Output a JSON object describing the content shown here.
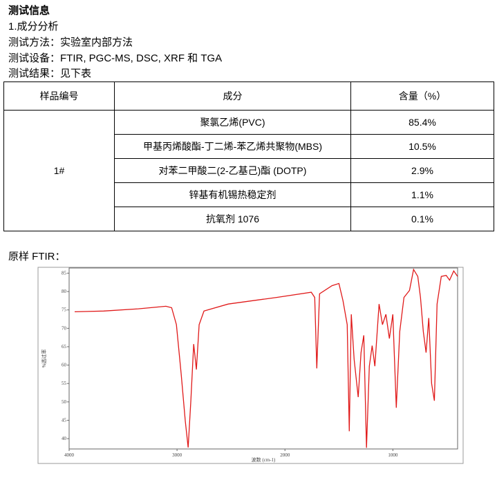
{
  "header": {
    "title": "测试信息",
    "lines": [
      "1.成分分析",
      "测试方法：实验室内部方法",
      "测试设备：FTIR, PGC-MS, DSC, XRF 和 TGA",
      "测试结果：见下表"
    ]
  },
  "table": {
    "headers": [
      "样品编号",
      "成分",
      "含量（%）"
    ],
    "sample": "1#",
    "rows": [
      [
        "聚氯乙烯(PVC)",
        "85.4%"
      ],
      [
        "甲基丙烯酸酯-丁二烯-苯乙烯共聚物(MBS)",
        "10.5%"
      ],
      [
        "对苯二甲酸二(2-乙基己)酯 (DOTP)",
        "2.9%"
      ],
      [
        "锌基有机锡热稳定剂",
        "1.1%"
      ],
      [
        "抗氧剂 1076",
        "0.1%"
      ]
    ]
  },
  "ftir": {
    "title": "原样 FTIR：",
    "chart": {
      "type": "line",
      "x_label": "波数 (cm-1)",
      "y_label": "%透过率",
      "color": "#e01818",
      "xlim": [
        4000,
        400
      ],
      "ylim": [
        37.2,
        86.4
      ],
      "xticks": [
        4000,
        3000,
        2000,
        1000
      ],
      "yticks": [
        40,
        45,
        50,
        55,
        60,
        65,
        70,
        75,
        80,
        85
      ],
      "x": [
        3949,
        3680,
        3359,
        3103,
        3050,
        3006,
        2962,
        2923,
        2897,
        2872,
        2846,
        2821,
        2795,
        2750,
        2526,
        2077,
        1756,
        1724,
        1705,
        1679,
        1564,
        1500,
        1462,
        1423,
        1404,
        1385,
        1359,
        1321,
        1295,
        1269,
        1244,
        1218,
        1192,
        1167,
        1128,
        1096,
        1064,
        1032,
        1000,
        968,
        936,
        897,
        846,
        808,
        769,
        744,
        718,
        692,
        667,
        641,
        615,
        590,
        551,
        506,
        474,
        436,
        400
      ],
      "values": [
        74.5,
        74.7,
        75.3,
        76,
        75.6,
        71,
        57.8,
        44.7,
        37.6,
        50.3,
        65.7,
        58.8,
        71,
        74.7,
        76.6,
        78.4,
        79.8,
        78.4,
        59.1,
        79.4,
        81.6,
        82.2,
        77.5,
        71,
        42,
        73.8,
        61.6,
        51.3,
        63.4,
        68.1,
        37.5,
        59.7,
        65.3,
        59.7,
        76.6,
        71,
        73.8,
        67.2,
        73.8,
        48.4,
        69.1,
        78.4,
        80.3,
        86,
        84.1,
        78.4,
        69.1,
        63.4,
        72.8,
        55,
        50.3,
        76.6,
        84.1,
        84.4,
        83.1,
        85.6,
        84.1
      ]
    }
  }
}
